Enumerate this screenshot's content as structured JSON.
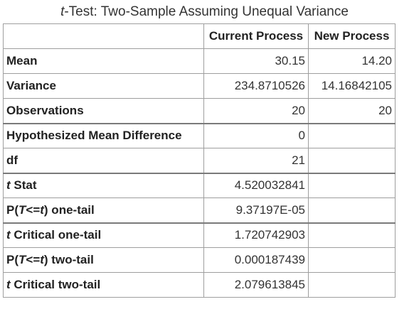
{
  "title": {
    "italic_prefix": "t",
    "rest": "-Test: Two-Sample Assuming Unequal Variance"
  },
  "columns": [
    "",
    "Current Process",
    "New Process"
  ],
  "rows": [
    {
      "label": "Mean",
      "current": "30.15",
      "new": "14.20"
    },
    {
      "label": "Variance",
      "current": "234.8710526",
      "new": "14.16842105"
    },
    {
      "label": "Observations",
      "current": "20",
      "new": "20"
    },
    {
      "label": "Hypothesized Mean Difference",
      "current": "0",
      "new": ""
    },
    {
      "label": "df",
      "current": "21",
      "new": ""
    },
    {
      "label_italic": "t",
      "label_rest": " Stat",
      "current": "4.520032841",
      "new": ""
    },
    {
      "label_pre": "P(",
      "label_italic": "T",
      "label_mid": "<=",
      "label_italic2": "t",
      "label_post": ") one-tail",
      "current": "9.37197E-05",
      "new": ""
    },
    {
      "label_italic": "t",
      "label_rest": " Critical one-tail",
      "current": "1.720742903",
      "new": ""
    },
    {
      "label_pre": "P(",
      "label_italic": "T",
      "label_mid": "<=",
      "label_italic2": "t",
      "label_post": ") two-tail",
      "current": "0.000187439",
      "new": ""
    },
    {
      "label_italic": "t",
      "label_rest": " Critical two-tail",
      "current": "2.079613845",
      "new": ""
    }
  ]
}
